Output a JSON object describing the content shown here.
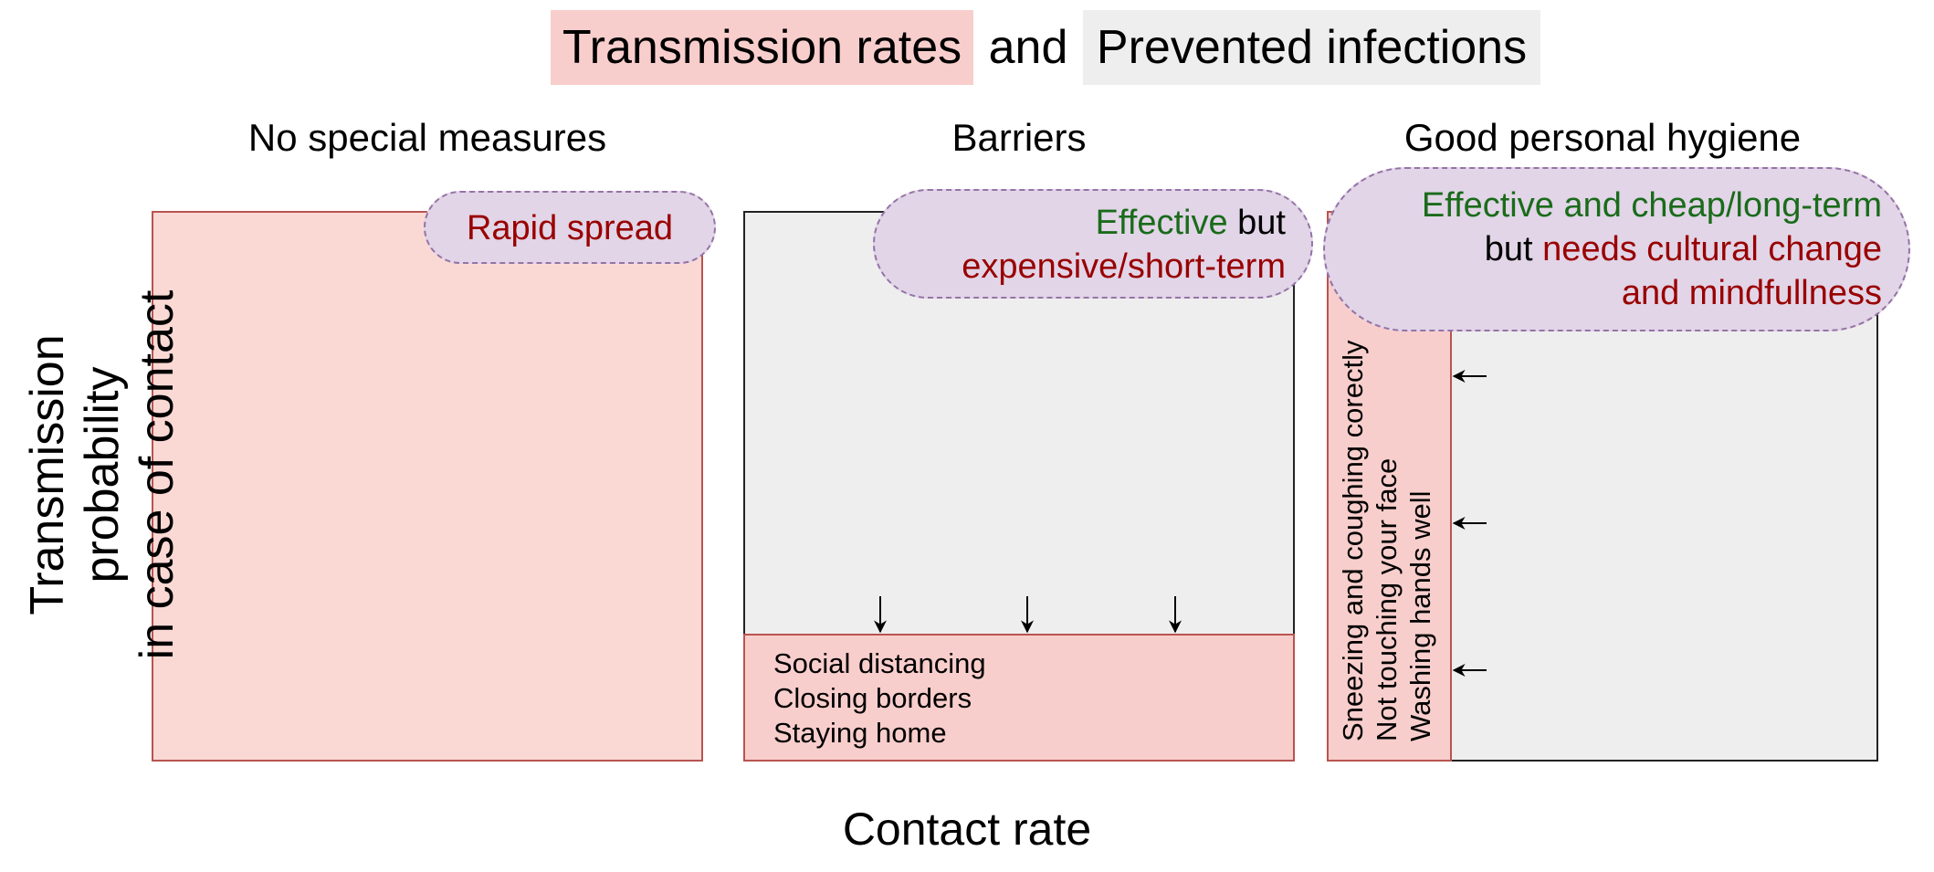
{
  "title": {
    "part1": "Transmission rates",
    "connector": "and",
    "part2": "Prevented infections",
    "part1_color": "#f8cecc",
    "part2_color": "#eeeeee"
  },
  "panels": [
    {
      "title": "No special measures",
      "callout": {
        "parts": [
          {
            "text": "Rapid spread",
            "tone": "red"
          }
        ]
      }
    },
    {
      "title": "Barriers",
      "callout": {
        "line1": [
          {
            "text": "Effective",
            "tone": "green"
          },
          {
            "text": " but",
            "tone": "black"
          }
        ],
        "line2": [
          {
            "text": "expensive/short-term",
            "tone": "red"
          }
        ]
      },
      "measures": [
        "Social distancing",
        "Closing borders",
        "Staying home"
      ]
    },
    {
      "title": "Good personal hygiene",
      "callout": {
        "line1": [
          {
            "text": "Effective and cheap/long-term",
            "tone": "green"
          }
        ],
        "line2": [
          {
            "text": "but ",
            "tone": "black"
          },
          {
            "text": "needs cultural change",
            "tone": "red"
          }
        ],
        "line3": [
          {
            "text": "and mindfullness",
            "tone": "red"
          }
        ]
      },
      "measures": [
        "Sneezing and coughing corectly",
        "Not touching your face",
        "Washing hands well"
      ]
    }
  ],
  "axes": {
    "y_label_line1": "Transmission probability",
    "y_label_line2": "in case of contact",
    "x_label": "Contact rate"
  },
  "colors": {
    "transmission_fill": "#f8cecc",
    "transmission_border": "#b85450",
    "prevented_fill": "#eeeeee",
    "callout_fill": "#e1d5e7",
    "callout_border": "#9673a6",
    "positive_text": "#1a6b1a",
    "negative_text": "#990000"
  }
}
